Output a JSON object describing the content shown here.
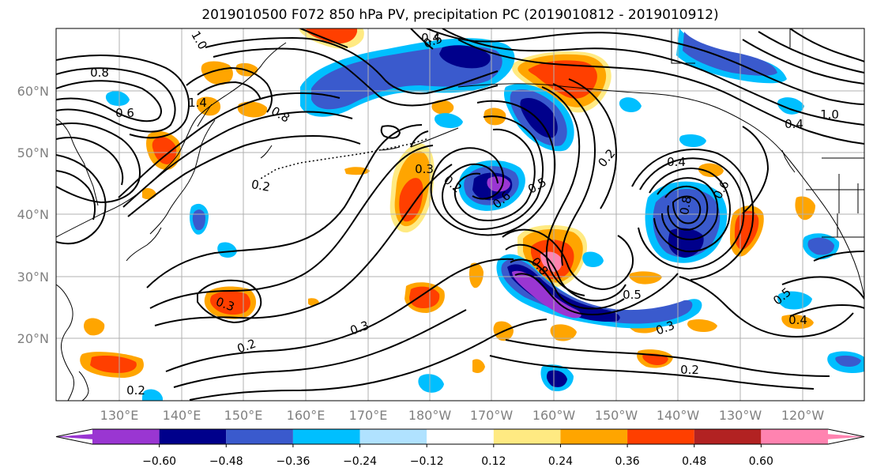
{
  "title": "2019010500 F072 850 hPa PV, precipitation PC (2019010812 - 2019010912)",
  "lat_labels": [
    "60°N",
    "50°N",
    "40°N",
    "30°N",
    "20°N"
  ],
  "lon_labels": [
    "130°E",
    "140°E",
    "150°E",
    "160°E",
    "170°E",
    "180°W",
    "170°W",
    "160°W",
    "150°W",
    "140°W",
    "130°W",
    "120°W"
  ],
  "colorbar": {
    "ticks": [
      "−0.60",
      "−0.48",
      "−0.36",
      "−0.24",
      "−0.12",
      "0.12",
      "0.24",
      "0.36",
      "0.48",
      "0.60"
    ],
    "colors": [
      "#9a36d2",
      "#00008b",
      "#3a5acd",
      "#00bfff",
      "#b0e2ff",
      "#ffffff",
      "#ffea82",
      "#ffa500",
      "#ff3f00",
      "#b22222",
      "#ff83b0"
    ]
  },
  "contour_labels": [
    "0.8",
    "0.5",
    "0.4",
    "1.0",
    "1.4",
    "0.6",
    "0.8",
    "0.2",
    "0.3",
    "0.2",
    "0.6",
    "0.5",
    "0.4",
    "0.8",
    "0.6",
    "0.2",
    "0.3",
    "0.3",
    "0.2",
    "0.2",
    "0.5",
    "0.3",
    "0.2",
    "0.4",
    "0.5",
    "0.4",
    "0.8",
    "1.0"
  ]
}
